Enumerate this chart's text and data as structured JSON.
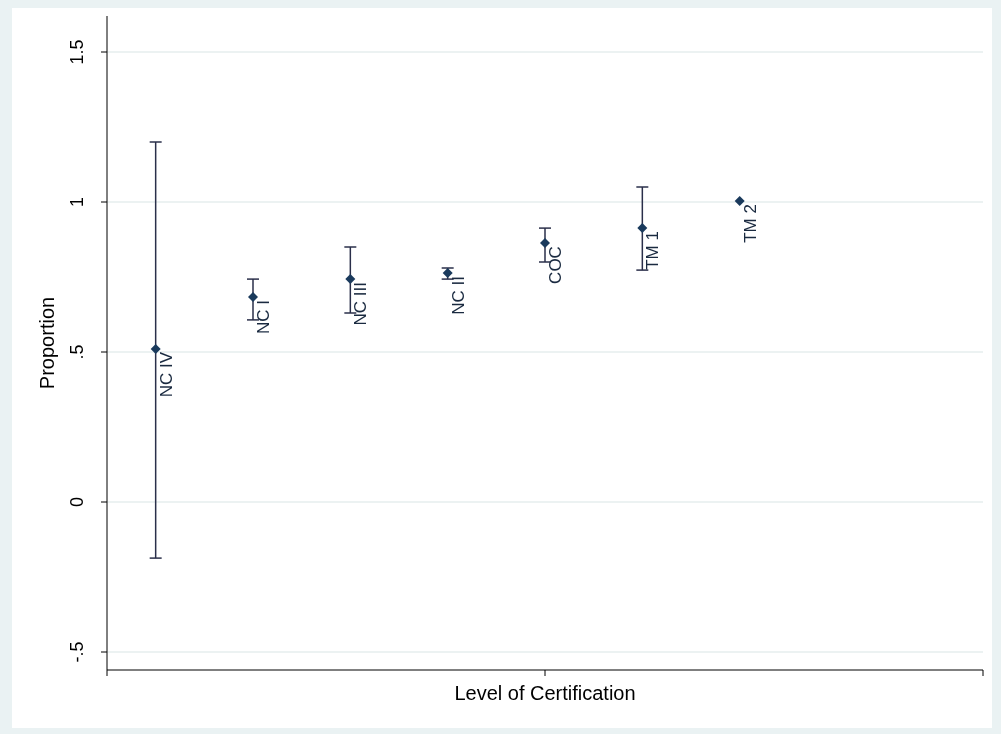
{
  "chart_data": {
    "type": "scatter",
    "xlabel": "Level of Certification",
    "ylabel": "Proportion",
    "categories": [
      null,
      null,
      null,
      null,
      null,
      null,
      null,
      null,
      null
    ],
    "values": [
      0.51,
      0.683,
      0.743,
      0.763,
      0.863,
      0.913,
      1.003,
      null,
      null
    ],
    "errors": [
      [
        -0.187,
        1.2
      ],
      [
        0.607,
        0.743
      ],
      [
        0.63,
        0.85
      ],
      [
        0.743,
        0.78
      ],
      [
        0.8,
        0.913
      ],
      [
        0.773,
        1.05
      ],
      null,
      null,
      null
    ],
    "color": "#1a3a5c",
    "marker": "diamond",
    "ylim": [
      -0.56,
      1.62
    ],
    "yticks": [
      {
        "value": -0.5,
        "label": "-.5"
      },
      0,
      {
        "value": 0.5,
        "label": ".5"
      },
      1,
      1.5
    ],
    "grid": "y",
    "annotations": [
      "NC IV",
      "NC I",
      "NC III",
      "NC II",
      "COC",
      "TM 1",
      "TM 2"
    ]
  }
}
